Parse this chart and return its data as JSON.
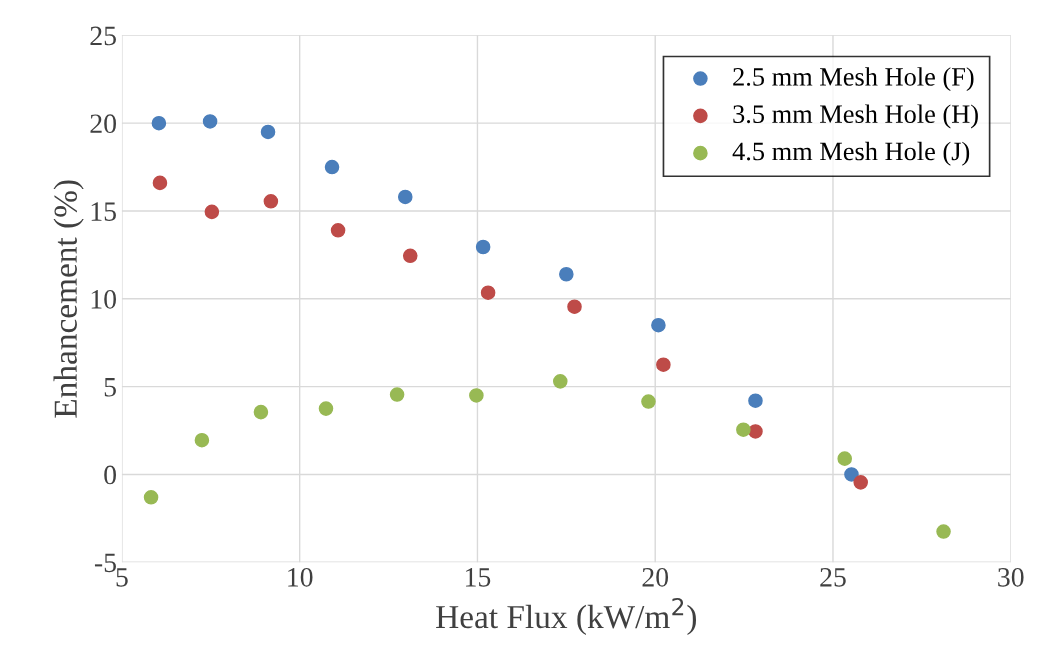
{
  "chart_data": {
    "type": "scatter",
    "xlabel": "Heat Flux (kW/m$^{2}$)",
    "ylabel": "Enhancement (%)",
    "xlim": [
      5,
      30
    ],
    "xticks": [
      5,
      10,
      15,
      20,
      25,
      30
    ],
    "ylim": [
      -5,
      25
    ],
    "yticks": [
      -5,
      0,
      5,
      10,
      15,
      20,
      25
    ],
    "grid": true,
    "legend": "top right",
    "marker": "circle",
    "series": [
      {
        "name": "2.5 mm Mesh Hole (F)",
        "color": "#4a7ebb",
        "x": [
          6.04,
          7.48,
          9.11,
          10.91,
          12.97,
          15.16,
          17.5,
          20.09,
          22.82,
          25.52
        ],
        "values": [
          20.0,
          20.1,
          19.5,
          17.5,
          15.8,
          12.95,
          11.4,
          8.5,
          4.2,
          0.0
        ]
      },
      {
        "name": "3.5 mm Mesh Hole (H)",
        "color": "#be4b48",
        "x": [
          6.07,
          7.53,
          9.19,
          11.08,
          13.11,
          15.3,
          17.73,
          20.23,
          22.82,
          25.78
        ],
        "values": [
          16.6,
          14.95,
          15.55,
          13.9,
          12.45,
          10.35,
          9.55,
          6.25,
          2.45,
          -0.45
        ]
      },
      {
        "name": "4.5 mm Mesh Hole (J)",
        "color": "#98b954",
        "x": [
          5.82,
          7.25,
          8.91,
          10.74,
          12.74,
          14.97,
          17.33,
          19.81,
          22.48,
          25.33,
          28.11
        ],
        "values": [
          -1.3,
          1.95,
          3.55,
          3.75,
          4.55,
          4.5,
          5.3,
          4.15,
          2.55,
          0.9,
          -3.25
        ]
      }
    ]
  }
}
